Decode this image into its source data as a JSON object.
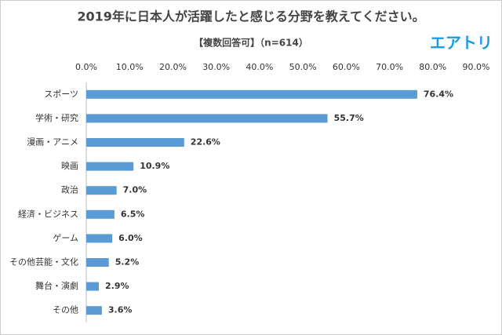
{
  "logo": "エアトリ",
  "chart_data": {
    "type": "hbar",
    "title": "2019年に日本人が活躍したと感じる分野を教えてください。",
    "subtitle": "【複数回答可】（n=614）",
    "categories": [
      "スポーツ",
      "学術・研究",
      "漫画・アニメ",
      "映画",
      "政治",
      "経済・ビジネス",
      "ゲーム",
      "その他芸能・文化",
      "舞台・演劇",
      "その他"
    ],
    "values": [
      76.4,
      55.7,
      22.6,
      10.9,
      7.0,
      6.5,
      6.0,
      5.2,
      2.9,
      3.6
    ],
    "value_labels": [
      "76.4%",
      "55.7%",
      "22.6%",
      "10.9%",
      "7.0%",
      "6.5%",
      "6.0%",
      "5.2%",
      "2.9%",
      "3.6%"
    ],
    "color": "#5b9bd5",
    "xlim": [
      0,
      90
    ],
    "xticks": [
      {
        "value": 0,
        "label": "0.0%"
      },
      {
        "value": 10,
        "label": "10.0%"
      },
      {
        "value": 20,
        "label": "20.0%"
      },
      {
        "value": 30,
        "label": "30.0%"
      },
      {
        "value": 40,
        "label": "40.0%"
      },
      {
        "value": 50,
        "label": "50.0%"
      },
      {
        "value": 60,
        "label": "60.0%"
      },
      {
        "value": 70,
        "label": "70.0%"
      },
      {
        "value": 80,
        "label": "80.0%"
      },
      {
        "value": 90,
        "label": "90.0%"
      }
    ],
    "grid": false
  }
}
